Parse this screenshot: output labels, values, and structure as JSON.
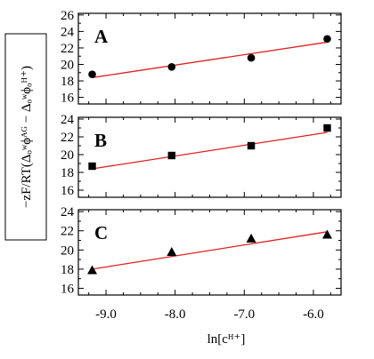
{
  "chart_data": {
    "type": "scatter",
    "ylabel_text": "−zF/RT(Δₒʷϕᴬᴳ − Δₒʷϕₒᴴ⁺)",
    "xlabel_text": "ln[cᴴ⁺]",
    "xlim": [
      -9.4,
      -5.6
    ],
    "x_ticks": [
      -9.0,
      -8.0,
      -7.0,
      -6.0
    ],
    "x_tick_labels": [
      "-9.0",
      "-8.0",
      "-7.0",
      "-6.0"
    ],
    "panels": [
      {
        "label": "A",
        "marker": "circle",
        "ylim": [
          15.2,
          26.2
        ],
        "y_ticks": [
          16,
          18,
          20,
          22,
          24,
          26
        ],
        "y_tick_labels": [
          "16",
          "18",
          "20",
          "22",
          "24",
          "26"
        ],
        "points": [
          [
            -9.2,
            18.8
          ],
          [
            -8.05,
            19.7
          ],
          [
            -6.9,
            20.8
          ],
          [
            -5.8,
            23.1
          ]
        ],
        "fit": [
          [
            -9.2,
            18.4
          ],
          [
            -5.8,
            22.7
          ]
        ]
      },
      {
        "label": "B",
        "marker": "square",
        "ylim": [
          15.2,
          24.2
        ],
        "y_ticks": [
          16,
          18,
          20,
          22,
          24
        ],
        "y_tick_labels": [
          "16",
          "18",
          "20",
          "22",
          "24"
        ],
        "points": [
          [
            -9.2,
            18.7
          ],
          [
            -8.05,
            19.9
          ],
          [
            -6.9,
            21.0
          ],
          [
            -5.8,
            23.0
          ]
        ],
        "fit": [
          [
            -9.2,
            18.4
          ],
          [
            -5.8,
            22.5
          ]
        ]
      },
      {
        "label": "C",
        "marker": "triangle",
        "ylim": [
          15.3,
          24.2
        ],
        "y_ticks": [
          16,
          18,
          20,
          22,
          24
        ],
        "y_tick_labels": [
          "16",
          "18",
          "20",
          "22",
          "24"
        ],
        "points": [
          [
            -9.2,
            17.9
          ],
          [
            -8.05,
            19.8
          ],
          [
            -6.9,
            21.2
          ],
          [
            -5.8,
            21.6
          ]
        ],
        "fit": [
          [
            -9.2,
            18.0
          ],
          [
            -5.8,
            21.9
          ]
        ]
      }
    ]
  }
}
